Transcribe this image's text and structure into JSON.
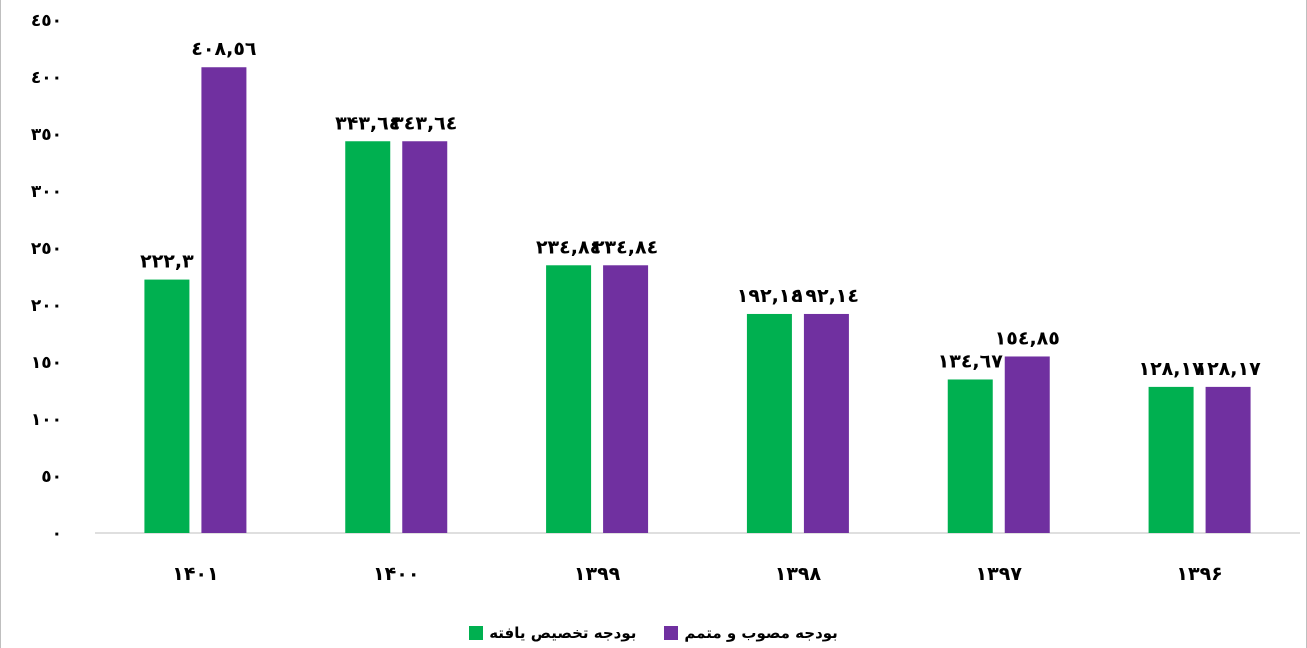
{
  "colors": {
    "allocated": "#00b050",
    "approved": "#7030a0",
    "axis": "#bfbfbf"
  },
  "chart_data": {
    "type": "bar",
    "categories": [
      "۱۴۰۱",
      "۱۴۰۰",
      "۱۳۹۹",
      "۱۳۹۸",
      "۱۳۹۷",
      "۱۳۹۶"
    ],
    "series": [
      {
        "name": "بودجه تخصیص یافته",
        "values": [
          222.3,
          343.64,
          234.84,
          192.14,
          134.67,
          128.17
        ],
        "labels": [
          "۲۲۲,۳",
          "۳۴۳,٦٤",
          "۲۳٤,۸٤",
          "۱۹۲,۱٤",
          "۱۳٤,٦۷",
          "۱۲۸,۱۷"
        ]
      },
      {
        "name": "بودجه مصوب و متمم",
        "values": [
          408.56,
          343.64,
          234.84,
          192.14,
          154.85,
          128.17
        ],
        "labels": [
          "٤۰۸,٥٦",
          "۳٤۳,٦٤",
          "۲۳٤,۸٤",
          "۱۹۲,۱٤",
          "۱٥٤,۸٥",
          "۱۲۸,۱۷"
        ]
      }
    ],
    "ylim": [
      0,
      450
    ],
    "yticks": [
      0,
      50,
      100,
      150,
      200,
      250,
      300,
      350,
      400,
      450
    ],
    "ytick_labels": [
      "۰",
      "٥۰",
      "۱۰۰",
      "۱٥۰",
      "۲۰۰",
      "۲٥۰",
      "۳۰۰",
      "۳٥۰",
      "٤۰۰",
      "٤٥۰"
    ],
    "grid": false,
    "legend_position": "bottom"
  }
}
